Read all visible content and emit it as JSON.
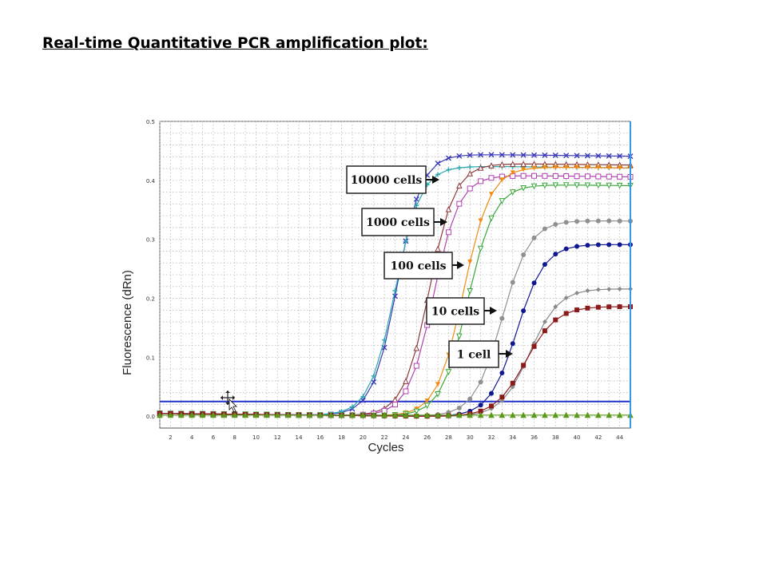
{
  "slide": {
    "title": "Real-time Quantitative PCR amplification plot:"
  },
  "chart_data": {
    "type": "line",
    "xlabel": "Cycles",
    "ylabel": "Fluorescence (dRn)",
    "xlim": [
      1,
      45
    ],
    "ylim": [
      -0.02,
      0.5
    ],
    "x_ticks": [
      2,
      4,
      6,
      8,
      10,
      12,
      14,
      16,
      18,
      20,
      22,
      24,
      26,
      28,
      30,
      32,
      34,
      36,
      38,
      40,
      42,
      44
    ],
    "y_ticks": [
      0.0,
      0.1,
      0.2,
      0.3,
      0.4,
      0.5
    ],
    "y_tick_labels": [
      "0.0",
      "0.1",
      "0.2",
      "0.3",
      "0.4",
      "0.5"
    ],
    "grid": true,
    "threshold": 0.025,
    "series": [
      {
        "color": "#3a3ab8",
        "marker": "x",
        "plateau": 0.445,
        "midpoint": 23.2,
        "slope": 1.15
      },
      {
        "color": "#2ca8b0",
        "marker": "star",
        "plateau": 0.425,
        "midpoint": 23.0,
        "slope": 1.2
      },
      {
        "color": "#8b3a3a",
        "marker": "triangle",
        "plateau": 0.43,
        "midpoint": 26.2,
        "slope": 1.2
      },
      {
        "color": "#b040b0",
        "marker": "square-open",
        "plateau": 0.41,
        "midpoint": 26.6,
        "slope": 1.2
      },
      {
        "color": "#f08a10",
        "marker": "triangle-down-filled",
        "plateau": 0.425,
        "midpoint": 29.4,
        "slope": 1.25
      },
      {
        "color": "#3aa83a",
        "marker": "triangle-down-open",
        "plateau": 0.395,
        "midpoint": 29.8,
        "slope": 1.25
      },
      {
        "color": "#909090",
        "marker": "circle",
        "plateau": 0.335,
        "midpoint": 33.0,
        "slope": 1.3
      },
      {
        "color": "#101890",
        "marker": "circle",
        "plateau": 0.295,
        "midpoint": 34.4,
        "slope": 1.3
      },
      {
        "color": "#8a8a8a",
        "marker": "diamond",
        "plateau": 0.22,
        "midpoint": 35.6,
        "slope": 1.35
      },
      {
        "color": "#8b1a1a",
        "marker": "square",
        "plateau": 0.19,
        "midpoint": 35.2,
        "slope": 1.45
      },
      {
        "color": "#5a9a1a",
        "marker": "triangle",
        "plateau": 0.0,
        "midpoint": 40,
        "slope": 1.0
      }
    ],
    "annotations": [
      {
        "text": "10000 cells",
        "x": 26.5,
        "y": 0.425
      },
      {
        "text": "1000 cells",
        "x": 28.5,
        "y": 0.317
      },
      {
        "text": "100 cells",
        "x": 30.5,
        "y": 0.243
      },
      {
        "text": "10 cells",
        "x": 32.5,
        "y": 0.162
      },
      {
        "text": "1 cell",
        "x": 34.2,
        "y": 0.088
      }
    ]
  },
  "colors": {
    "threshold_line": "#2233cc",
    "cursor_line": "#3399ee",
    "grid": "#b8b8b8"
  }
}
